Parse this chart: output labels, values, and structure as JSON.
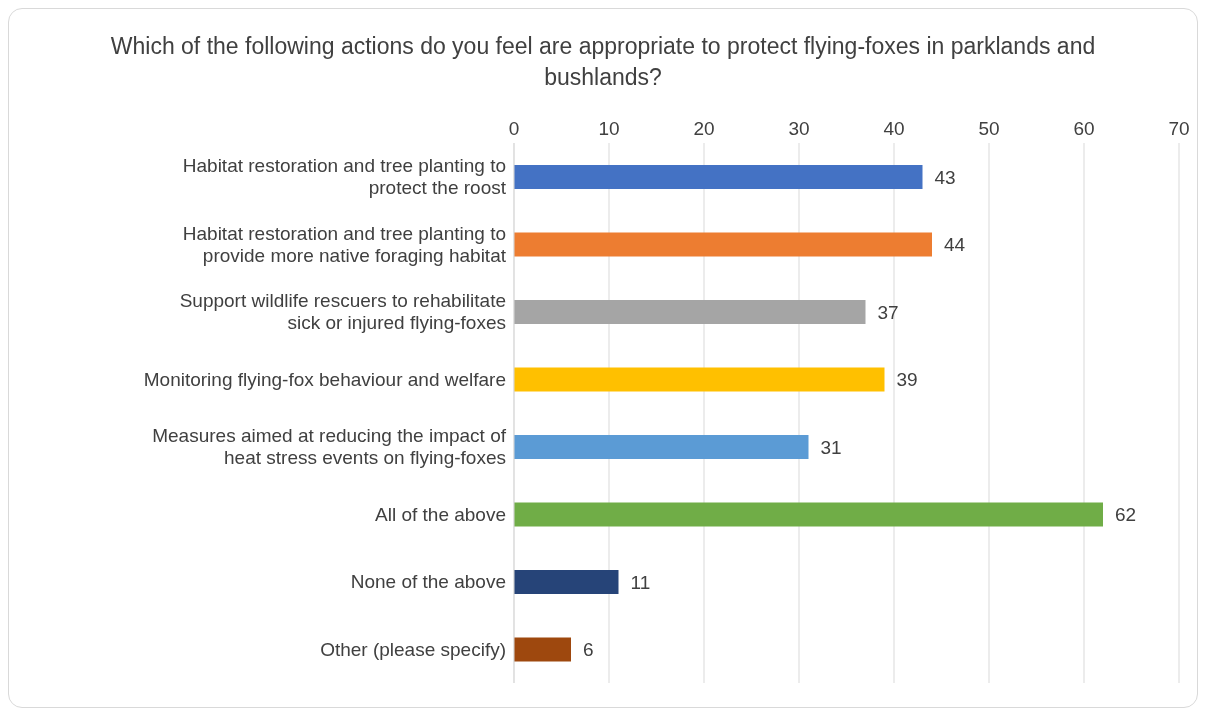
{
  "chart_data": {
    "type": "bar",
    "orientation": "horizontal",
    "title": "Which of the following actions do you feel are appropriate to protect flying-foxes in parklands and bushlands?",
    "categories": [
      "Habitat restoration and tree planting to protect the roost",
      "Habitat restoration and tree planting to provide more native foraging habitat",
      "Support wildlife rescuers to rehabilitate sick or injured flying-foxes",
      "Monitoring flying-fox behaviour and welfare",
      "Measures aimed at reducing the impact of heat stress events on flying-foxes",
      "All of the above",
      "None of the above",
      "Other (please specify)"
    ],
    "values": [
      43,
      44,
      37,
      39,
      31,
      62,
      11,
      6
    ],
    "colors": [
      "#4472c4",
      "#ed7d31",
      "#a5a5a5",
      "#ffc000",
      "#5b9bd5",
      "#70ad47",
      "#264478",
      "#9e480e"
    ],
    "xlim": [
      0,
      70
    ],
    "xticks": [
      0,
      10,
      20,
      30,
      40,
      50,
      60,
      70
    ],
    "grid": "x",
    "data_labels": true
  }
}
